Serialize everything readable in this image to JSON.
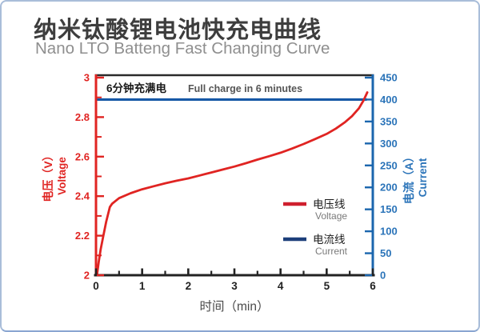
{
  "header": {
    "title": "纳米钛酸锂电池快充电曲线",
    "subtitle": "Nano LTO Batteng Fast Changing Curve",
    "title_color": "#3d3d3d",
    "subtitle_color": "#8f8f8f"
  },
  "frame": {
    "background": "#ffffff",
    "border_color": "#a9bdd9"
  },
  "chart_data": {
    "type": "line",
    "annotation": {
      "zh": "6分钟充满电",
      "en": "Full charge in 6 minutes",
      "zh_color": "#1a1a1a",
      "en_color": "#555555"
    },
    "x_axis": {
      "label": "时间（min）",
      "label_color": "#4a4a4a",
      "range": [
        0,
        6
      ],
      "major_ticks": [
        0,
        1,
        2,
        3,
        4,
        5,
        6
      ],
      "tick_labels": [
        "0",
        "1",
        "2",
        "3",
        "4",
        "5",
        "6"
      ],
      "minor_step": 0.5,
      "axis_color": "#222222",
      "tick_label_color": "#222222",
      "grid": false
    },
    "y_left": {
      "label_zh": "电压（V）",
      "label_en": "Voltage",
      "range": [
        2,
        3
      ],
      "major_ticks": [
        2,
        2.2,
        2.4,
        2.6,
        2.8,
        3
      ],
      "tick_labels": [
        "2",
        "2.2",
        "2.4",
        "2.6",
        "2.8",
        "3"
      ],
      "minor_step": 0.1,
      "axis_color": "#e02422",
      "tick_label_color": "#e02422"
    },
    "y_right": {
      "label_zh": "电流（A）",
      "label_en": "Current",
      "range": [
        0,
        450
      ],
      "major_ticks": [
        0,
        50,
        100,
        150,
        200,
        250,
        300,
        350,
        400,
        450
      ],
      "tick_labels": [
        "0",
        "50",
        "100",
        "150",
        "200",
        "250",
        "300",
        "350",
        "400",
        "450"
      ],
      "axis_color": "#1b66ae",
      "tick_label_color": "#2b74b9"
    },
    "plot_top_border_color": "#2b2b2b",
    "series": [
      {
        "id": "voltage",
        "legend_zh": "电压线",
        "legend_en": "Voltage",
        "axis": "left",
        "color": "#e02422",
        "legend_color": "#cf1f2e",
        "points": [
          [
            0.02,
            2.0
          ],
          [
            0.06,
            2.07
          ],
          [
            0.1,
            2.13
          ],
          [
            0.16,
            2.2
          ],
          [
            0.22,
            2.27
          ],
          [
            0.3,
            2.345
          ],
          [
            0.35,
            2.362
          ],
          [
            0.5,
            2.39
          ],
          [
            0.75,
            2.415
          ],
          [
            1,
            2.435
          ],
          [
            1.25,
            2.45
          ],
          [
            1.5,
            2.465
          ],
          [
            1.75,
            2.478
          ],
          [
            2,
            2.49
          ],
          [
            2.25,
            2.505
          ],
          [
            2.5,
            2.52
          ],
          [
            2.75,
            2.535
          ],
          [
            3,
            2.55
          ],
          [
            3.25,
            2.567
          ],
          [
            3.5,
            2.585
          ],
          [
            3.75,
            2.602
          ],
          [
            4,
            2.62
          ],
          [
            4.25,
            2.641
          ],
          [
            4.5,
            2.664
          ],
          [
            4.75,
            2.689
          ],
          [
            5,
            2.715
          ],
          [
            5.2,
            2.742
          ],
          [
            5.4,
            2.775
          ],
          [
            5.55,
            2.805
          ],
          [
            5.7,
            2.845
          ],
          [
            5.8,
            2.885
          ],
          [
            5.88,
            2.925
          ]
        ]
      },
      {
        "id": "current",
        "legend_zh": "电流线",
        "legend_en": "Current",
        "axis": "right",
        "color": "#1759a6",
        "legend_color": "#1d3f7b",
        "points": [
          [
            0.02,
            400
          ],
          [
            5.87,
            400
          ]
        ]
      }
    ],
    "legend": {
      "text_color": "#1a1a1a",
      "sub_text_color": "#7a7a7a",
      "position": "inside-right"
    }
  }
}
